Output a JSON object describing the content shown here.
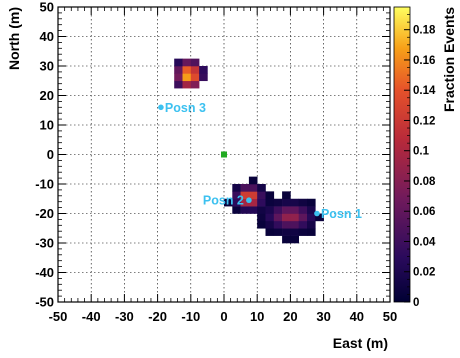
{
  "chart_data": {
    "type": "heatmap",
    "xlabel": "East (m)",
    "ylabel": "North (m)",
    "colorbar_label": "Fraction Events",
    "xlim": [
      -50,
      50
    ],
    "ylim": [
      -50,
      50
    ],
    "zlim": [
      0,
      0.195
    ],
    "bin_size": 2.5,
    "grid": true,
    "x_ticks": [
      -50,
      -40,
      -30,
      -20,
      -10,
      0,
      10,
      20,
      30,
      40,
      50
    ],
    "y_ticks": [
      -50,
      -40,
      -30,
      -20,
      -10,
      0,
      10,
      20,
      30,
      40,
      50
    ],
    "x_tick_labels": [
      "-50",
      "-40",
      "-30",
      "-20",
      "-10",
      "0",
      "10",
      "20",
      "30",
      "40",
      "50"
    ],
    "y_tick_labels": [
      "-50",
      "-40",
      "-30",
      "-20",
      "-10",
      "0",
      "10",
      "20",
      "30",
      "40",
      "50"
    ],
    "colorbar_ticks": [
      0,
      0.02,
      0.04,
      0.06,
      0.08,
      0.1,
      0.12,
      0.14,
      0.16,
      0.18
    ],
    "colorbar_tick_labels": [
      "0",
      "0.02",
      "0.04",
      "0.06",
      "0.08",
      "0.1",
      "0.12",
      "0.14",
      "0.16",
      "0.18"
    ],
    "clusters": [
      {
        "x": -10.5,
        "y": 27,
        "sx": 2.4,
        "sy": 3.0,
        "peak": 0.18,
        "extent_x": 4.5,
        "extent_y": 6
      },
      {
        "x": 7.5,
        "y": -14.5,
        "sx": 2.3,
        "sy": 2.3,
        "peak": 0.15,
        "extent_x": 6.5,
        "extent_y": 6
      },
      {
        "x": 20,
        "y": -21,
        "sx": 4.0,
        "sy": 2.6,
        "peak": 0.09,
        "extent_x": 10,
        "extent_y": 7.5
      }
    ],
    "positions": [
      {
        "label": "Posn 1",
        "x": 28,
        "y": -20
      },
      {
        "label": "Posn 2",
        "x": 7.5,
        "y": -15.5
      },
      {
        "label": "Posn 3",
        "x": -19,
        "y": 16
      }
    ],
    "origin_marker": {
      "x": 0,
      "y": 0,
      "color": "#22aa22"
    },
    "marker_color": "#3cc1f0"
  }
}
